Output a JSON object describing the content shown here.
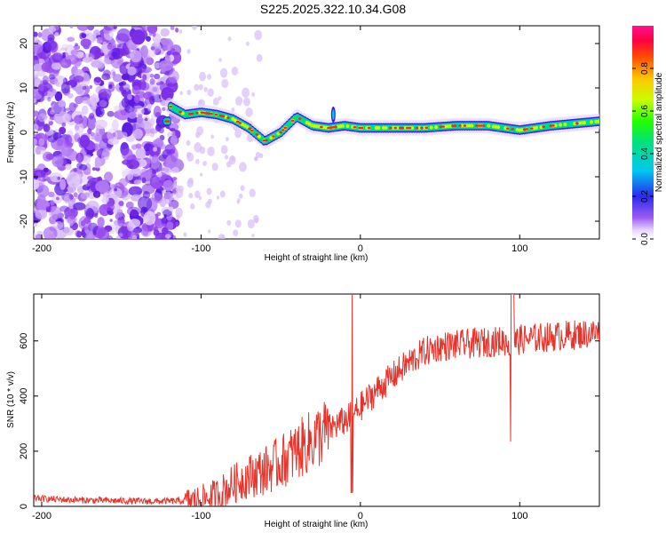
{
  "title": "S225.2025.322.10.34.G08",
  "chart_data": [
    {
      "type": "heatmap",
      "xlabel": "Height of straight line (km)",
      "ylabel": "Frequency (Hz)",
      "xlim": [
        -205,
        150
      ],
      "ylim": [
        -24,
        24
      ],
      "xticks": [
        -200,
        -100,
        0,
        100
      ],
      "yticks": [
        20,
        10,
        0,
        -10,
        -20
      ],
      "colorbar": {
        "label": "Normalized spectral amplitude",
        "range": [
          0,
          1
        ],
        "ticks": [
          "0.0",
          "0.2",
          "0.4",
          "0.6",
          "0.8"
        ]
      },
      "ridge": {
        "x": [
          -120,
          -110,
          -100,
          -90,
          -80,
          -70,
          -60,
          -50,
          -40,
          -30,
          -20,
          -10,
          0,
          20,
          40,
          60,
          80,
          100,
          120,
          150
        ],
        "y": [
          6,
          4,
          4.5,
          4,
          3,
          1,
          -2,
          0,
          3.5,
          1.5,
          1,
          1.5,
          1,
          1,
          1,
          1.5,
          1.5,
          0.5,
          1.5,
          2.5
        ]
      }
    },
    {
      "type": "line",
      "xlabel": "Height of straight line (km)",
      "ylabel": "SNR (10 * v/v)",
      "xlim": [
        -205,
        150
      ],
      "ylim": [
        0,
        770
      ],
      "xticks": [
        -200,
        -100,
        0,
        100
      ],
      "yticks": [
        0,
        200,
        400,
        600
      ],
      "series": [
        {
          "name": "SNR",
          "color": "#e8332a",
          "x": [
            -205,
            -190,
            -170,
            -150,
            -130,
            -110,
            -100,
            -90,
            -80,
            -70,
            -60,
            -50,
            -40,
            -30,
            -20,
            -10,
            -5,
            0,
            10,
            20,
            30,
            40,
            50,
            60,
            70,
            80,
            90,
            95,
            100,
            110,
            120,
            130,
            140,
            150
          ],
          "y": [
            30,
            25,
            22,
            20,
            18,
            20,
            25,
            40,
            80,
            110,
            130,
            160,
            200,
            240,
            280,
            310,
            330,
            360,
            420,
            470,
            520,
            560,
            580,
            585,
            590,
            595,
            600,
            590,
            605,
            610,
            615,
            620,
            625,
            630
          ]
        }
      ],
      "annotations": [
        {
          "x": -5,
          "y": 770,
          "note": "spike"
        },
        {
          "x": -5,
          "y": 50,
          "note": "dip"
        },
        {
          "x": 95,
          "y": 770,
          "note": "spike"
        },
        {
          "x": 95,
          "y": 235,
          "note": "dip"
        }
      ]
    }
  ]
}
